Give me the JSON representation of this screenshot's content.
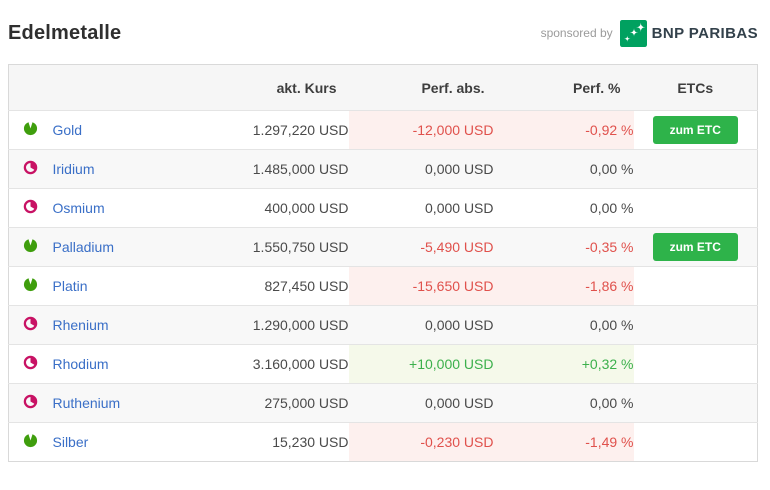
{
  "page": {
    "title": "Edelmetalle",
    "sponsored_by_label": "sponsored by",
    "sponsor_name": "BNP PARIBAS"
  },
  "table": {
    "headers": {
      "kurs": "akt. Kurs",
      "perf_abs": "Perf. abs.",
      "perf_pct": "Perf. %",
      "etcs": "ETCs"
    },
    "etc_button_label": "zum ETC",
    "rows": [
      {
        "name": "Gold",
        "quote_icon": "green",
        "kurs": "1.297,220 USD",
        "perf_abs": "-12,000 USD",
        "perf_pct": "-0,92 %",
        "trend": "down",
        "has_etc": true
      },
      {
        "name": "Iridium",
        "quote_icon": "red",
        "kurs": "1.485,000 USD",
        "perf_abs": "0,000 USD",
        "perf_pct": "0,00 %",
        "trend": "flat",
        "has_etc": false
      },
      {
        "name": "Osmium",
        "quote_icon": "red",
        "kurs": "400,000 USD",
        "perf_abs": "0,000 USD",
        "perf_pct": "0,00 %",
        "trend": "flat",
        "has_etc": false
      },
      {
        "name": "Palladium",
        "quote_icon": "green",
        "kurs": "1.550,750 USD",
        "perf_abs": "-5,490 USD",
        "perf_pct": "-0,35 %",
        "trend": "down",
        "has_etc": true
      },
      {
        "name": "Platin",
        "quote_icon": "green",
        "kurs": "827,450 USD",
        "perf_abs": "-15,650 USD",
        "perf_pct": "-1,86 %",
        "trend": "down",
        "has_etc": false
      },
      {
        "name": "Rhenium",
        "quote_icon": "red",
        "kurs": "1.290,000 USD",
        "perf_abs": "0,000 USD",
        "perf_pct": "0,00 %",
        "trend": "flat",
        "has_etc": false
      },
      {
        "name": "Rhodium",
        "quote_icon": "red",
        "kurs": "3.160,000 USD",
        "perf_abs": "+10,000 USD",
        "perf_pct": "+0,32 %",
        "trend": "up",
        "has_etc": false
      },
      {
        "name": "Ruthenium",
        "quote_icon": "red",
        "kurs": "275,000 USD",
        "perf_abs": "0,000 USD",
        "perf_pct": "0,00 %",
        "trend": "flat",
        "has_etc": false
      },
      {
        "name": "Silber",
        "quote_icon": "green",
        "kurs": "15,230 USD",
        "perf_abs": "-0,230 USD",
        "perf_pct": "-1,49 %",
        "trend": "down",
        "has_etc": false
      }
    ]
  },
  "colors": {
    "button_green": "#2eb34a",
    "positive_green": "#3cb04c",
    "positive_bg": "#f5f9ea",
    "negative_red": "#e0514c",
    "negative_bg": "#fdf0ee",
    "link_blue": "#3a6fc7",
    "icon_green": "#3f9e0d",
    "icon_magenta": "#c81264",
    "sponsor_green": "#00a160",
    "header_bg": "#f6f6f6"
  }
}
